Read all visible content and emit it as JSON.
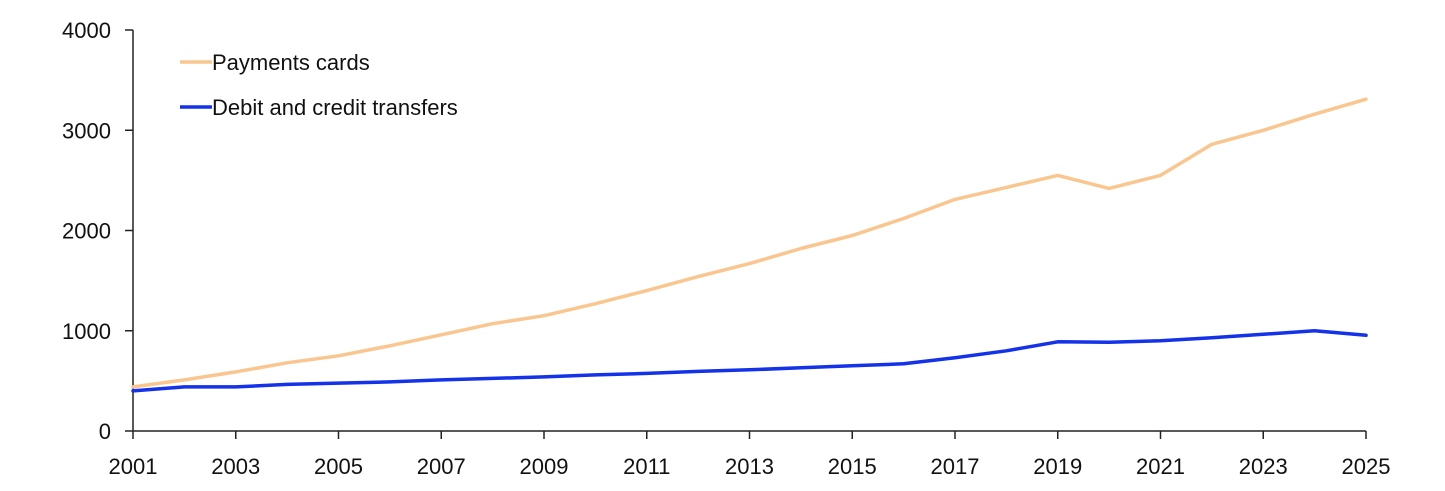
{
  "chart_data": {
    "type": "line",
    "x": [
      2001,
      2002,
      2003,
      2004,
      2005,
      2006,
      2007,
      2008,
      2009,
      2010,
      2011,
      2012,
      2013,
      2014,
      2015,
      2016,
      2017,
      2018,
      2019,
      2020,
      2021,
      2022,
      2023,
      2024,
      2025
    ],
    "series": [
      {
        "name": "Payments cards",
        "color": "#f9c68f",
        "values": [
          440,
          510,
          590,
          680,
          750,
          850,
          960,
          1070,
          1150,
          1270,
          1400,
          1540,
          1670,
          1820,
          1950,
          2120,
          2310,
          2430,
          2550,
          2420,
          2550,
          2860,
          3000,
          3160,
          3310
        ]
      },
      {
        "name": "Debit and credit transfers",
        "color": "#1432e8",
        "values": [
          400,
          440,
          440,
          465,
          478,
          490,
          510,
          525,
          540,
          560,
          575,
          595,
          610,
          630,
          650,
          670,
          730,
          800,
          890,
          885,
          900,
          930,
          965,
          1000,
          955
        ]
      }
    ],
    "ylim": [
      0,
      4000
    ],
    "yticks": [
      "0",
      "1000",
      "2000",
      "3000",
      "4000"
    ],
    "xlim": [
      2001,
      2025
    ],
    "xticks": [
      "2001",
      "2003",
      "2005",
      "2007",
      "2009",
      "2011",
      "2013",
      "2015",
      "2017",
      "2019",
      "2021",
      "2023",
      "2025"
    ],
    "grid": false,
    "legend_position": "top-left"
  }
}
